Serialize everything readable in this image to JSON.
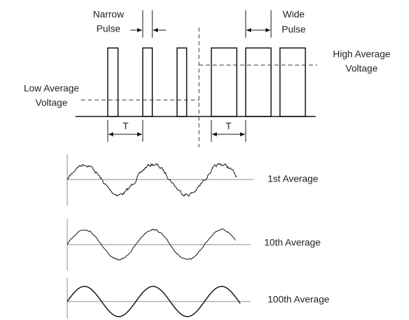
{
  "labels": {
    "narrow_pulse": [
      "Narrow",
      "Pulse"
    ],
    "wide_pulse": [
      "Wide",
      "Pulse"
    ],
    "high_average": [
      "High Average",
      "Voltage"
    ],
    "low_average": [
      "Low Average",
      "Voltage"
    ],
    "period_left": "T",
    "period_right": "T",
    "first_average": "1st Average",
    "tenth_average": "10th Average",
    "hundredth_average": "100th Average"
  }
}
